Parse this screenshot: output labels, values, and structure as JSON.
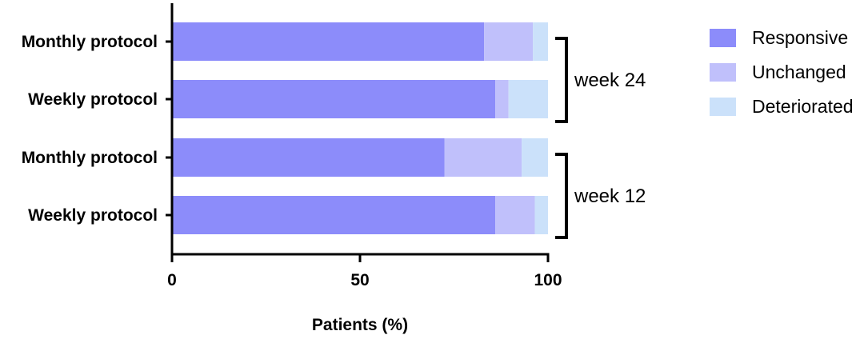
{
  "chart_data": {
    "type": "bar",
    "orientation": "horizontal",
    "stacked": true,
    "categories": [
      "Monthly protocol",
      "Weekly protocol",
      "Monthly protocol",
      "Weekly protocol"
    ],
    "series": [
      {
        "name": "Responsive",
        "color": "#8c8cfa",
        "values": [
          83,
          86,
          72.5,
          86
        ]
      },
      {
        "name": "Unchanged",
        "color": "#c0c0fb",
        "values": [
          13,
          3.5,
          20.5,
          10.5
        ]
      },
      {
        "name": "Deteriorated",
        "color": "#cbe1fa",
        "values": [
          4,
          10.5,
          7,
          3.5
        ]
      }
    ],
    "groups": [
      {
        "label": "week 24",
        "categories": [
          0,
          1
        ]
      },
      {
        "label": "week 12",
        "categories": [
          2,
          3
        ]
      }
    ],
    "xlabel": "Patients (%)",
    "xlim": [
      0,
      100
    ],
    "xticks": [
      0,
      50,
      100
    ],
    "legend_position": "right",
    "grid": false
  }
}
